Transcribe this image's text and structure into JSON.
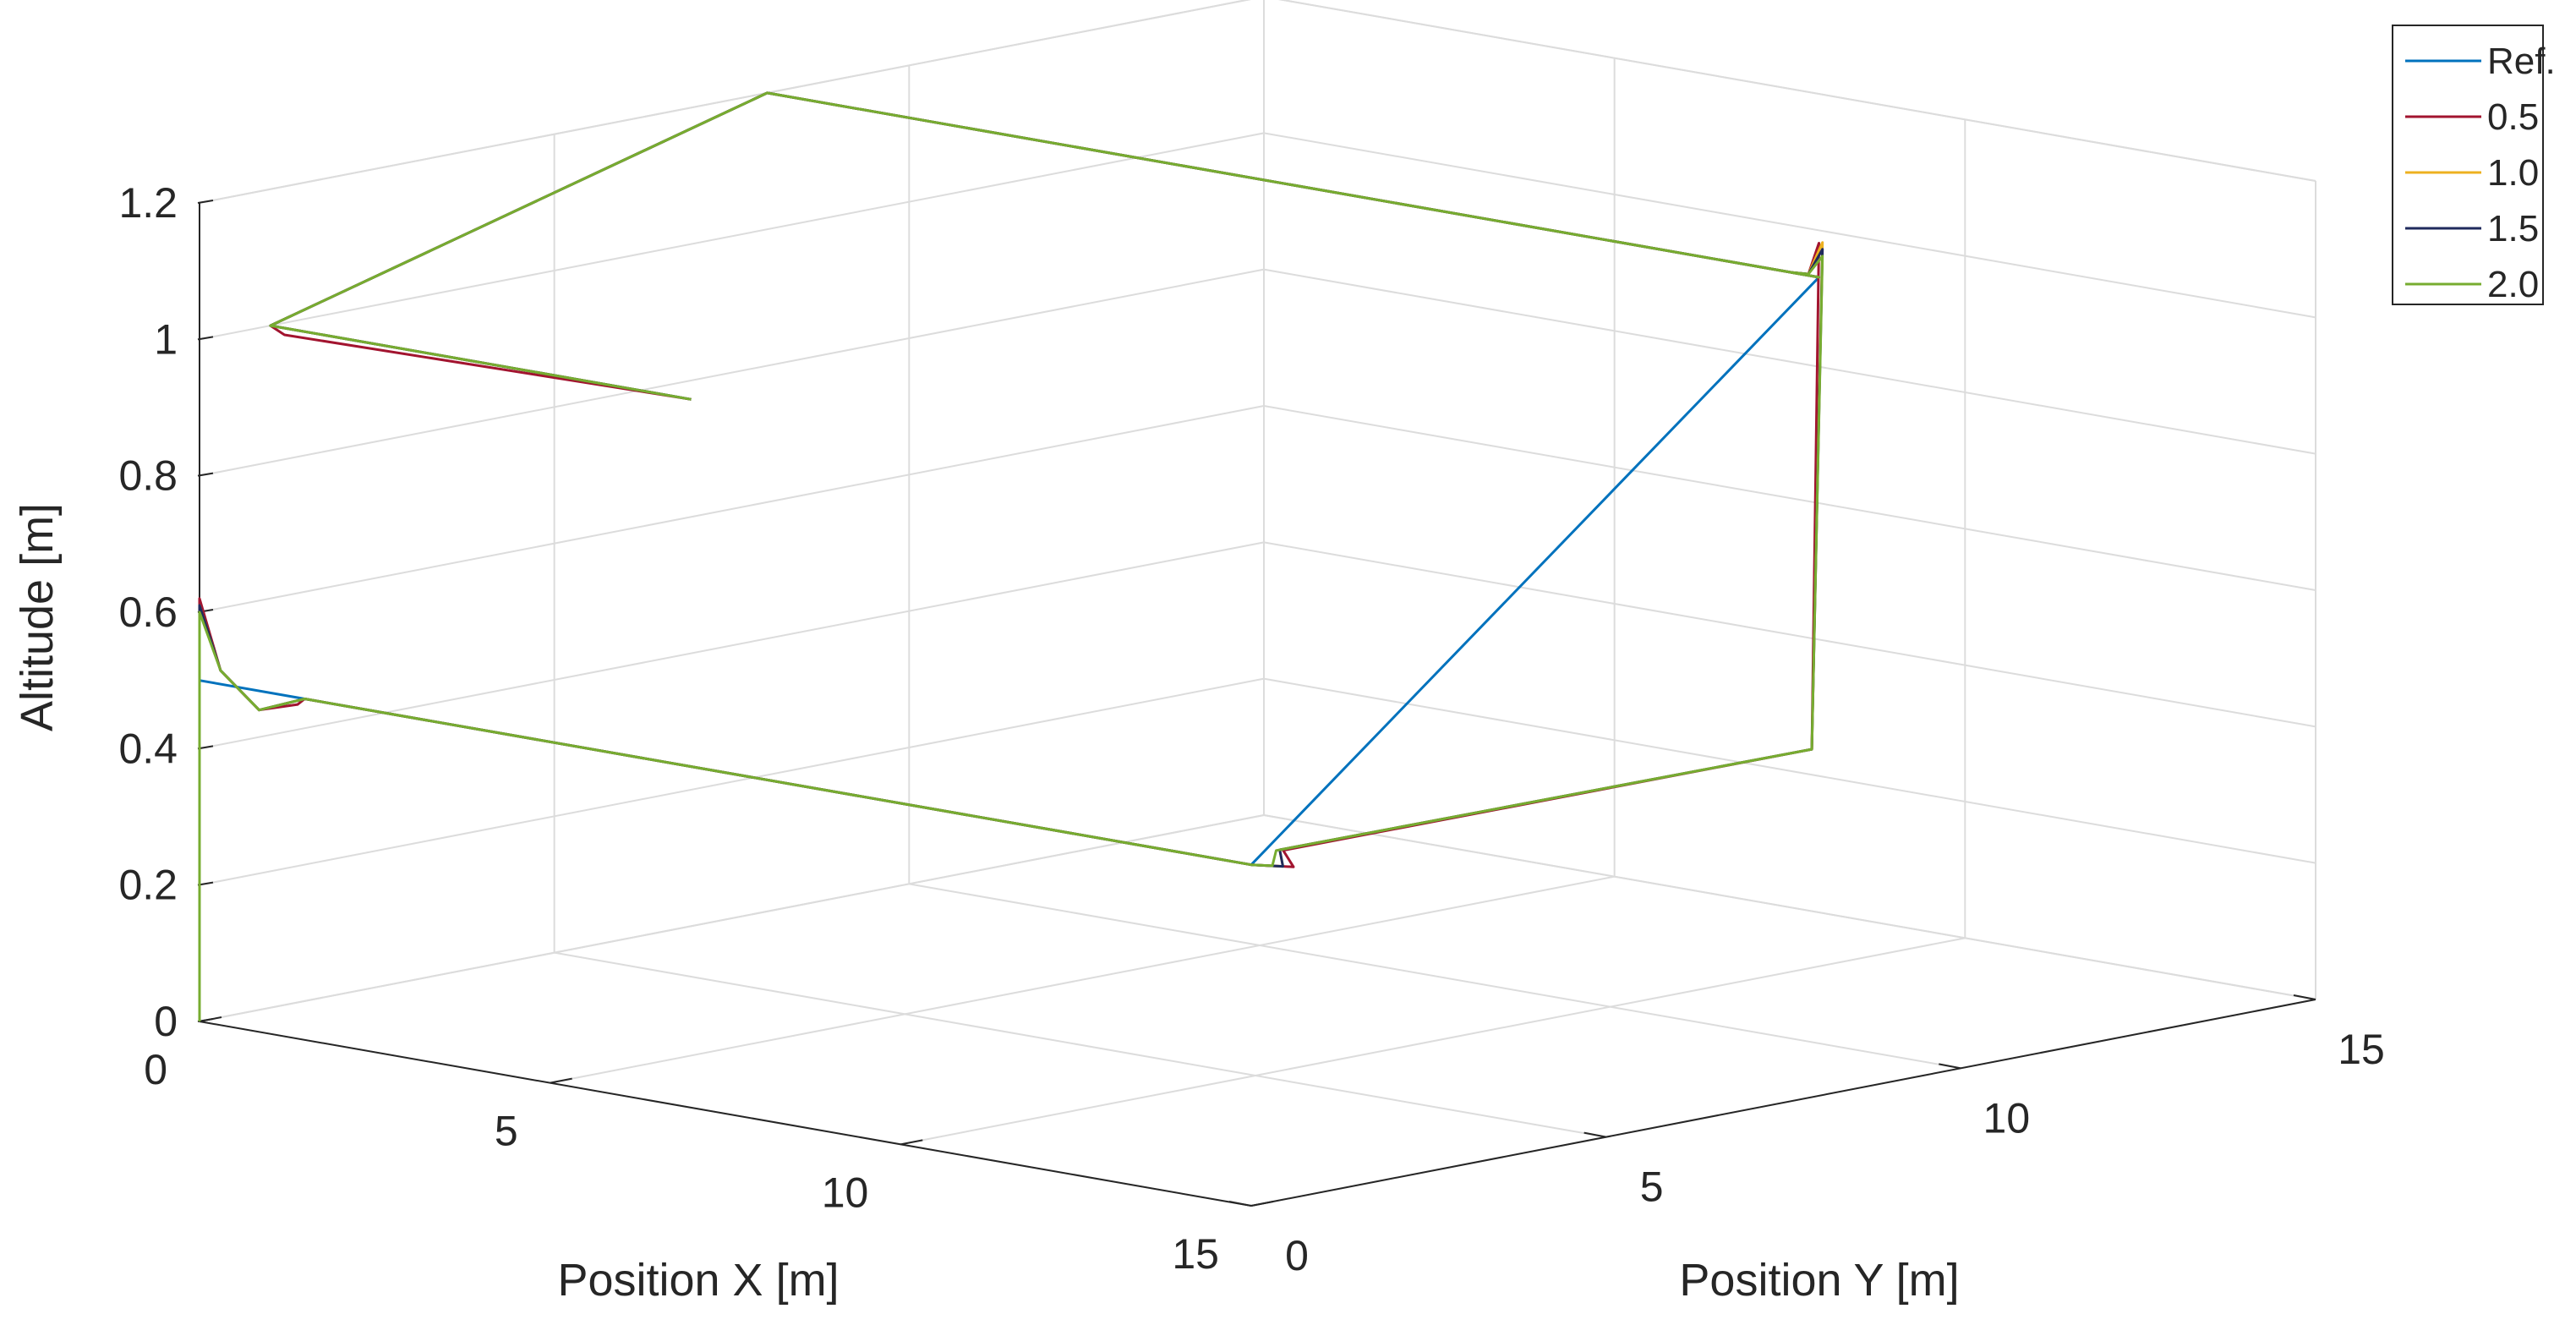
{
  "chart_data": {
    "type": "line",
    "projection": "3d",
    "title": "",
    "xlabel": "Position X [m]",
    "ylabel": "Position Y [m]",
    "zlabel": "Altitude [m]",
    "xlim": [
      0,
      15
    ],
    "ylim": [
      0,
      15
    ],
    "zlim": [
      0,
      1.2
    ],
    "xticks": [
      "0",
      "5",
      "10",
      "15"
    ],
    "yticks": [
      "0",
      "5",
      "10",
      "15"
    ],
    "zticks": [
      "0",
      "0.2",
      "0.4",
      "0.6",
      "0.8",
      "1",
      "1.2"
    ],
    "grid": true,
    "legend_position": "top-right",
    "series": [
      {
        "name": "Ref.",
        "color": "#0072bd",
        "x": [
          0,
          0,
          1.5,
          15,
          15,
          0,
          0,
          6
        ],
        "y": [
          0,
          0,
          0,
          0,
          8,
          8,
          1,
          1
        ],
        "z": [
          0,
          0.5,
          0.5,
          0.5,
          1.2,
          1.2,
          1.0,
          1.0
        ]
      },
      {
        "name": "0.5",
        "color": "#a2142f",
        "x": [
          0,
          0,
          0.3,
          0.8,
          1.4,
          1.5,
          15,
          15.4,
          14.95,
          15,
          15,
          14.8,
          14.6,
          15,
          0,
          0,
          0.2,
          6
        ],
        "y": [
          0,
          0,
          0,
          0.05,
          0,
          0,
          0,
          0.2,
          0.5,
          7.9,
          8,
          8.05,
          8,
          8,
          8,
          1,
          1,
          1
        ],
        "z": [
          0,
          0.62,
          0.52,
          0.47,
          0.49,
          0.5,
          0.5,
          0.5,
          0.51,
          0.51,
          1.25,
          1.2,
          1.2,
          1.2,
          1.2,
          1.0,
          0.99,
          1.0
        ]
      },
      {
        "name": "1.0",
        "color": "#edb120",
        "x": [
          0,
          0,
          0.3,
          0.8,
          1.5,
          15,
          15.3,
          14.9,
          15,
          15,
          14.8,
          14.6,
          15,
          0,
          0,
          6
        ],
        "y": [
          0,
          0,
          0,
          0.05,
          0,
          0,
          0.15,
          0.5,
          7.9,
          8.05,
          8.05,
          8,
          8,
          8,
          1,
          1
        ],
        "z": [
          0,
          0.61,
          0.52,
          0.47,
          0.5,
          0.5,
          0.5,
          0.51,
          0.51,
          1.25,
          1.2,
          1.2,
          1.2,
          1.2,
          1.0,
          1.0
        ]
      },
      {
        "name": "1.5",
        "color": "#1f2a5c",
        "x": [
          0,
          0,
          0.3,
          0.8,
          1.5,
          15,
          15.3,
          14.9,
          15,
          15,
          14.8,
          14.6,
          15,
          0,
          0,
          6
        ],
        "y": [
          0,
          0,
          0,
          0.05,
          0,
          0,
          0.15,
          0.5,
          7.9,
          8.05,
          8.05,
          8,
          8,
          8,
          1,
          1
        ],
        "z": [
          0,
          0.61,
          0.52,
          0.47,
          0.5,
          0.5,
          0.5,
          0.51,
          0.51,
          1.24,
          1.2,
          1.2,
          1.2,
          1.2,
          1.0,
          1.0
        ]
      },
      {
        "name": "2.0",
        "color": "#77ac30",
        "x": [
          0,
          0,
          0.3,
          0.8,
          1.5,
          15,
          15.2,
          14.9,
          15,
          15,
          14.8,
          14.6,
          15,
          0,
          0,
          6
        ],
        "y": [
          0,
          0,
          0,
          0.05,
          0,
          0,
          0.1,
          0.45,
          7.9,
          8.05,
          8.05,
          8,
          8,
          8,
          1,
          1
        ],
        "z": [
          0,
          0.6,
          0.52,
          0.47,
          0.5,
          0.5,
          0.5,
          0.51,
          0.51,
          1.23,
          1.2,
          1.2,
          1.2,
          1.2,
          1.0,
          1.0
        ]
      }
    ]
  }
}
